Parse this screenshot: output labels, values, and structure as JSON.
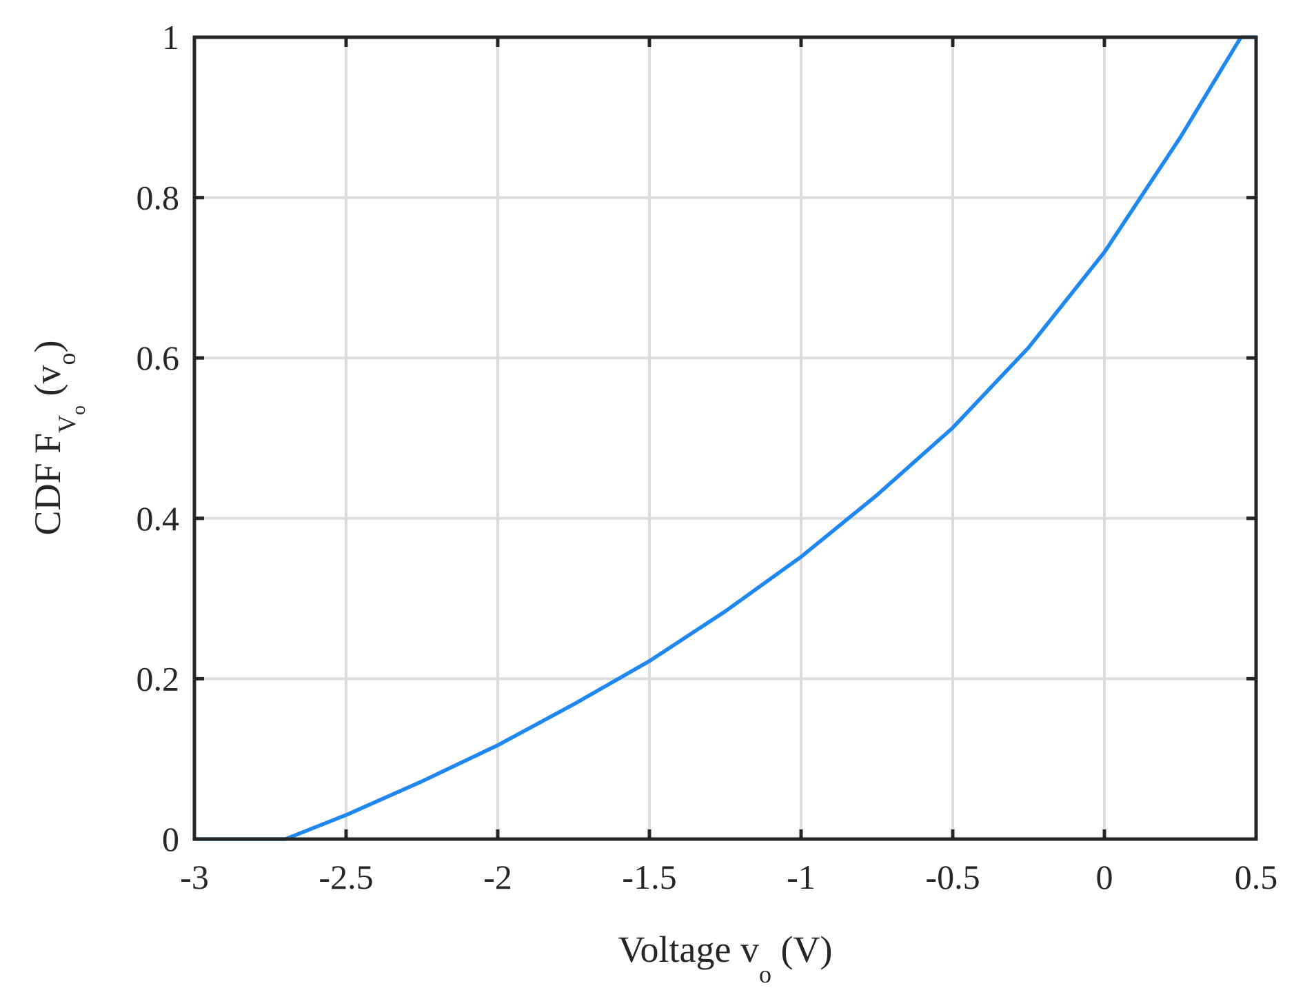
{
  "chart_data": {
    "type": "line",
    "title": "",
    "xlabel": "Voltage v_o (V)",
    "ylabel": "CDF F_{V_o}(v_o)",
    "xlim": [
      -3,
      0.5
    ],
    "ylim": [
      0,
      1
    ],
    "xticks": [
      -3,
      -2.5,
      -2,
      -1.5,
      -1,
      -0.5,
      0,
      0.5
    ],
    "xtick_labels": [
      "-3",
      "-2.5",
      "-2",
      "-1.5",
      "-1",
      "-0.5",
      "0",
      "0.5"
    ],
    "yticks": [
      0,
      0.2,
      0.4,
      0.6,
      0.8,
      1
    ],
    "ytick_labels": [
      "0",
      "0.2",
      "0.4",
      "0.6",
      "0.8",
      "1"
    ],
    "grid": true,
    "series": [
      {
        "color": "#1e88f0",
        "x": [
          -3.0,
          -2.7,
          -2.5,
          -2.25,
          -2.0,
          -1.75,
          -1.5,
          -1.25,
          -1.0,
          -0.75,
          -0.5,
          -0.25,
          0.0,
          0.25,
          0.45,
          0.5
        ],
        "y": [
          0.0,
          0.0,
          0.03,
          0.072,
          0.117,
          0.168,
          0.222,
          0.284,
          0.352,
          0.429,
          0.513,
          0.613,
          0.732,
          0.875,
          1.0,
          1.0
        ]
      }
    ]
  },
  "labels": {
    "x_main": "Voltage v",
    "x_sub": "o",
    "x_unit": " (V)",
    "y_main": "CDF F",
    "y_sub": "V",
    "y_subsub": "o",
    "y_arg_open": " (v",
    "y_arg_sub": "o",
    "y_arg_close": ")"
  }
}
